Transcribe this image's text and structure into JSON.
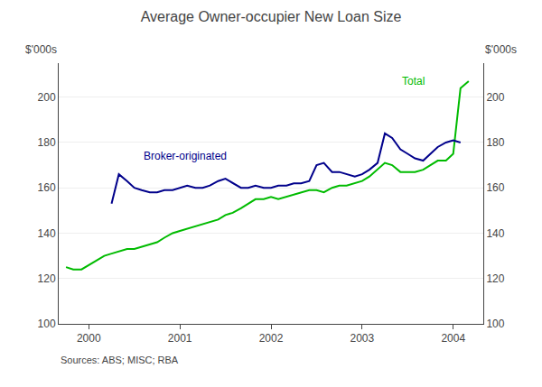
{
  "chart_data": {
    "type": "line",
    "title": "Average Owner-occupier New Loan Size",
    "ylabel": "$'000s",
    "y2label": "$'000s",
    "source": "Sources: ABS; MISC; RBA",
    "xlim": [
      1999.67,
      2004.33
    ],
    "xticks": [
      2000,
      2001,
      2002,
      2003,
      2004
    ],
    "ylim": [
      100,
      215
    ],
    "yticks": [
      100,
      120,
      140,
      160,
      180,
      200
    ],
    "y2lim": [
      100,
      215
    ],
    "y2ticks": [
      100,
      120,
      140,
      160,
      180,
      200
    ],
    "grid": true,
    "series": [
      {
        "name": "Total",
        "color": "#00bb00",
        "x": [
          1999.75,
          1999.83,
          1999.92,
          2000.0,
          2000.08,
          2000.17,
          2000.25,
          2000.33,
          2000.42,
          2000.5,
          2000.58,
          2000.67,
          2000.75,
          2000.83,
          2000.92,
          2001.0,
          2001.08,
          2001.17,
          2001.25,
          2001.33,
          2001.42,
          2001.5,
          2001.58,
          2001.67,
          2001.75,
          2001.83,
          2001.92,
          2002.0,
          2002.08,
          2002.17,
          2002.25,
          2002.33,
          2002.42,
          2002.5,
          2002.58,
          2002.67,
          2002.75,
          2002.83,
          2002.92,
          2003.0,
          2003.08,
          2003.17,
          2003.25,
          2003.33,
          2003.42,
          2003.5,
          2003.58,
          2003.67,
          2003.75,
          2003.83,
          2003.92,
          2004.0,
          2004.08,
          2004.17
        ],
        "values": [
          125,
          124,
          124,
          126,
          128,
          130,
          131,
          132,
          133,
          133,
          134,
          135,
          136,
          138,
          140,
          141,
          142,
          143,
          144,
          145,
          146,
          148,
          149,
          151,
          153,
          155,
          155,
          156,
          155,
          156,
          157,
          158,
          159,
          159,
          158,
          160,
          161,
          161,
          162,
          163,
          165,
          168,
          171,
          170,
          167,
          167,
          167,
          168,
          170,
          172,
          172,
          175,
          204,
          207
        ]
      },
      {
        "name": "Broker-originated",
        "color": "#00008B",
        "x": [
          2000.25,
          2000.33,
          2000.42,
          2000.5,
          2000.58,
          2000.67,
          2000.75,
          2000.83,
          2000.92,
          2001.0,
          2001.08,
          2001.17,
          2001.25,
          2001.33,
          2001.42,
          2001.5,
          2001.58,
          2001.67,
          2001.75,
          2001.83,
          2001.92,
          2002.0,
          2002.08,
          2002.17,
          2002.25,
          2002.33,
          2002.42,
          2002.5,
          2002.58,
          2002.67,
          2002.75,
          2002.83,
          2002.92,
          2003.0,
          2003.08,
          2003.17,
          2003.25,
          2003.33,
          2003.42,
          2003.5,
          2003.58,
          2003.67,
          2003.75,
          2003.83,
          2003.92,
          2004.0,
          2004.08
        ],
        "values": [
          153,
          166,
          163,
          160,
          159,
          158,
          158,
          159,
          159,
          160,
          161,
          160,
          160,
          161,
          163,
          164,
          162,
          160,
          160,
          161,
          160,
          160,
          161,
          161,
          162,
          162,
          163,
          170,
          171,
          167,
          167,
          166,
          165,
          166,
          168,
          171,
          184,
          182,
          177,
          175,
          173,
          172,
          175,
          178,
          180,
          181,
          180
        ]
      }
    ],
    "annotations": [
      {
        "text": "Total",
        "x": 2003.42,
        "y": 207,
        "color": "#00bb00"
      },
      {
        "text": "Broker-originated",
        "x": 2000.58,
        "y": 174,
        "color": "#00008B"
      }
    ]
  }
}
